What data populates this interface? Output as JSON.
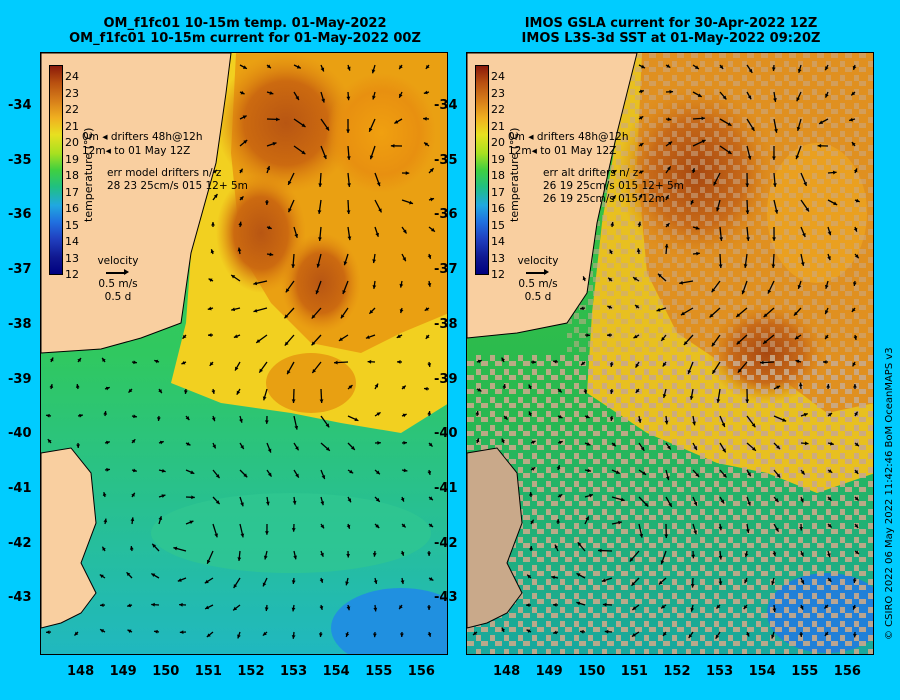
{
  "left_panel": {
    "title_line1": "OM_f1fc01 10-15m temp. 01-May-2022",
    "title_line2": "OM_f1fc01 10-15m current for 01-May-2022 00Z",
    "legend_drifter1": "0m  ◂ drifters 48h@12h",
    "legend_drifter2": "12m◂  to 01 May 12Z",
    "err_line1": "err model drifters n/ z",
    "err_line2": "28 23 25cm/s 015 12+ 5m"
  },
  "right_panel": {
    "title_line1": "IMOS GSLA current for 30-Apr-2022 12Z",
    "title_line2": "IMOS L3S-3d SST at 01-May-2022 09:20Z",
    "legend_drifter1": "0m  ◂ drifters 48h@12h",
    "legend_drifter2": "12m◂  to 01 May 12Z",
    "err_line1": "err alt drifters n/ z",
    "err_line2": "26 19 25cm/s 015 12+ 5m",
    "err_line3": "26 19 25cm/s 015 12m"
  },
  "colorbar": {
    "title": "temperature (°C)",
    "ticks": [
      "24",
      "23",
      "22",
      "21",
      "20",
      "19",
      "18",
      "17",
      "16",
      "15",
      "14",
      "13",
      "12"
    ]
  },
  "velocity_key": {
    "label": "velocity",
    "speed": "0.5 m/s",
    "duration": "0.5 d"
  },
  "y_ticks": [
    "-34",
    "-35",
    "-36",
    "-37",
    "-38",
    "-39",
    "-40",
    "-41",
    "-42",
    "-43"
  ],
  "x_ticks": [
    "148",
    "149",
    "150",
    "151",
    "152",
    "153",
    "154",
    "155",
    "156"
  ],
  "credit": "© CSIRO 2022   06 May 2022 11:42:46 BoM OceanMAPS v3",
  "colors": {
    "background": "#00ccff",
    "land": "#f9cfa0",
    "missing": "#c9a98a"
  }
}
